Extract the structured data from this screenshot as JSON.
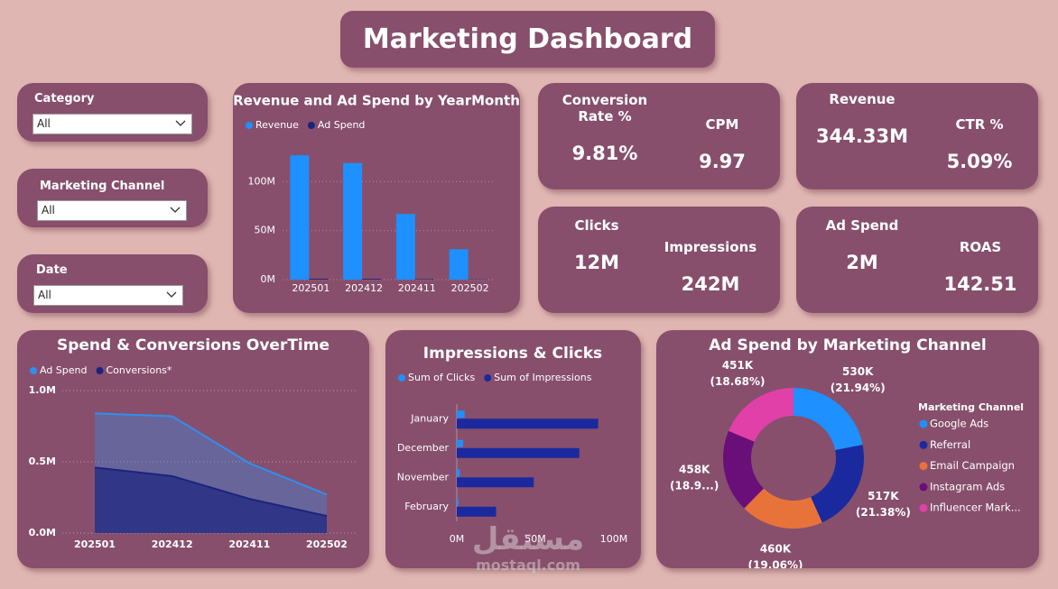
{
  "title": "Marketing Dashboard",
  "filters": [
    {
      "label": "Category",
      "value": "All"
    },
    {
      "label": "Marketing Channel",
      "value": "All"
    },
    {
      "label": "Date",
      "value": "All"
    }
  ],
  "kpis": [
    {
      "label": "Conversion Rate %",
      "value": "9.81%"
    },
    {
      "label": "CPM",
      "value": "9.97"
    },
    {
      "label": "Revenue",
      "value": "344.33M"
    },
    {
      "label": "CTR %",
      "value": "5.09%"
    },
    {
      "label": "Clicks",
      "value": "12M"
    },
    {
      "label": "Impressions",
      "value": "242M"
    },
    {
      "label": "Ad Spend",
      "value": "2M"
    },
    {
      "label": "ROAS",
      "value": "142.51"
    }
  ],
  "chart_data": [
    {
      "type": "bar",
      "title": "Revenue and Ad Spend by YearMonth",
      "categories": [
        "202501",
        "202412",
        "202411",
        "202502"
      ],
      "series": [
        {
          "name": "Revenue",
          "color": "#1e90ff",
          "values": [
            127,
            119,
            67,
            31
          ]
        },
        {
          "name": "Ad Spend",
          "color": "#1a237e",
          "values": [
            0.84,
            0.82,
            0.49,
            0.27
          ]
        }
      ],
      "ylim": [
        0,
        140
      ],
      "yticks": [
        {
          "value": 0,
          "label": "0M"
        },
        {
          "value": 50,
          "label": "50M"
        },
        {
          "value": 100,
          "label": "100M"
        }
      ],
      "grid": true
    },
    {
      "type": "area",
      "title": "Spend & Conversions OverTime",
      "categories": [
        "202501",
        "202412",
        "202411",
        "202502"
      ],
      "series": [
        {
          "name": "Ad Spend",
          "color": "#2f8ff0",
          "values": [
            0.84,
            0.82,
            0.49,
            0.27
          ]
        },
        {
          "name": "Conversions*",
          "color": "#1a237e",
          "values": [
            0.46,
            0.4,
            0.24,
            0.12
          ]
        }
      ],
      "ylim": [
        0,
        1
      ],
      "yticks": [
        {
          "value": 0,
          "label": "0.0M"
        },
        {
          "value": 0.5,
          "label": "0.5M"
        },
        {
          "value": 1,
          "label": "1.0M"
        }
      ],
      "grid": true
    },
    {
      "type": "bar",
      "orientation": "horizontal",
      "title": "Impressions & Clicks",
      "categories": [
        "January",
        "December",
        "November",
        "February"
      ],
      "series": [
        {
          "name": "Sum of Clicks",
          "color": "#1e90ff",
          "values": [
            5,
            4,
            2,
            1
          ]
        },
        {
          "name": "Sum of Impressions",
          "color": "#1a2a9e",
          "values": [
            90,
            78,
            49,
            25
          ]
        }
      ],
      "xlim": [
        0,
        100
      ],
      "xticks": [
        {
          "value": 0,
          "label": "0M"
        },
        {
          "value": 50,
          "label": "50M"
        },
        {
          "value": 100,
          "label": "100M"
        }
      ],
      "grid": false
    },
    {
      "type": "donut",
      "title": "Ad Spend by Marketing Channel",
      "legend_title": "Marketing Channel",
      "categories": [
        "Google Ads",
        "Referral",
        "Email Campaign",
        "Instagram Ads",
        "Influencer Mark..."
      ],
      "values": [
        530,
        517,
        460,
        458,
        451
      ],
      "value_labels": [
        "530K",
        "517K",
        "460K",
        "458K",
        "451K"
      ],
      "percent_labels": [
        "(21.94%)",
        "(21.38%)",
        "(19.06%)",
        "(18.9...)",
        "(18.68%)"
      ],
      "colors": [
        "#1e90ff",
        "#1a2a9e",
        "#e8733a",
        "#6a0f7a",
        "#e040a8"
      ]
    }
  ],
  "watermark": {
    "text": "مستقل",
    "site": "mostaql.com"
  }
}
